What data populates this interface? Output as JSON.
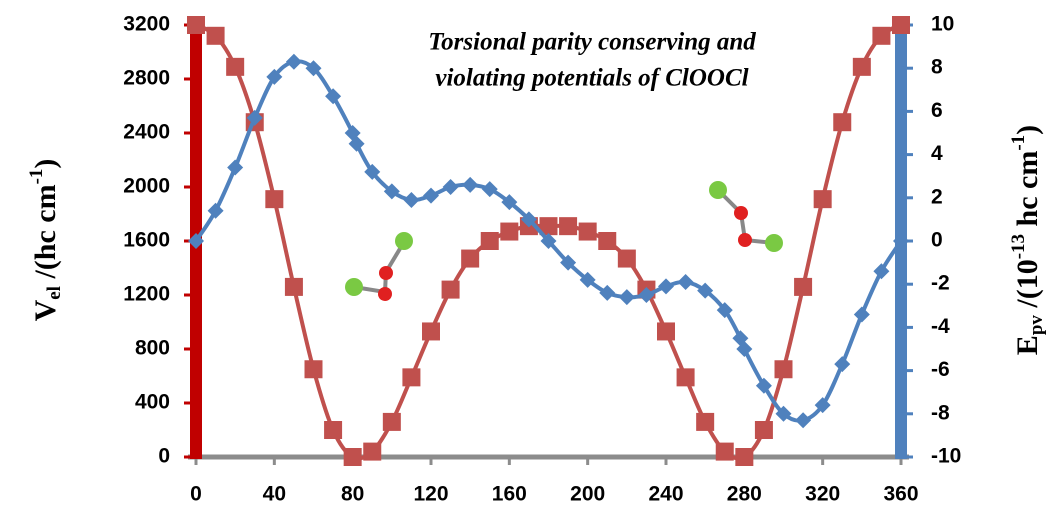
{
  "chart_data": {
    "type": "line",
    "title_lines": [
      "Torsional parity conserving and",
      "violating potentials of ClOOCl"
    ],
    "y_label_parts": [
      "V",
      "el",
      " /(hc cm",
      "-1",
      ")"
    ],
    "y2_label_parts": [
      "E",
      "pv",
      " /(10",
      "-13",
      " hc cm",
      "-1",
      ")"
    ],
    "xlim": [
      0,
      360
    ],
    "xticks": [
      0,
      40,
      80,
      120,
      160,
      200,
      240,
      280,
      320,
      360
    ],
    "ylim": [
      0,
      3200
    ],
    "yticks": [
      0,
      400,
      800,
      1200,
      1600,
      2000,
      2400,
      2800,
      3200
    ],
    "y2lim": [
      -10,
      10
    ],
    "y2ticks": [
      -10,
      -8,
      -6,
      -4,
      -2,
      0,
      2,
      4,
      6,
      8,
      10
    ],
    "series": [
      {
        "color": "#c0504d",
        "axis": "y",
        "marker": "square",
        "x": [
          0,
          10,
          20,
          30,
          40,
          50,
          60,
          70,
          80,
          90,
          100,
          110,
          120,
          130,
          140,
          150,
          160,
          170,
          180,
          190,
          200,
          210,
          220,
          230,
          240,
          250,
          260,
          270,
          280,
          290,
          300,
          310,
          320,
          330,
          340,
          350,
          360
        ],
        "values": [
          3200,
          3120,
          2890,
          2480,
          1910,
          1260,
          650,
          200,
          0,
          40,
          260,
          590,
          930,
          1240,
          1470,
          1600,
          1670,
          1710,
          1710,
          1710,
          1670,
          1600,
          1470,
          1240,
          930,
          590,
          260,
          40,
          0,
          200,
          650,
          1260,
          1910,
          2480,
          2890,
          3120,
          3200
        ]
      },
      {
        "color": "#4f81bd",
        "axis": "y2",
        "marker": "diamond",
        "x": [
          0,
          10,
          20,
          30,
          40,
          50,
          60,
          70,
          80,
          82,
          90,
          100,
          110,
          120,
          130,
          140,
          150,
          160,
          170,
          180,
          190,
          200,
          210,
          220,
          230,
          240,
          250,
          260,
          270,
          278,
          280,
          290,
          300,
          310,
          320,
          330,
          340,
          350,
          360
        ],
        "values": [
          0,
          1.4,
          3.4,
          5.7,
          7.6,
          8.3,
          8.0,
          6.7,
          5.0,
          4.5,
          3.2,
          2.3,
          1.9,
          2.1,
          2.5,
          2.6,
          2.4,
          1.8,
          1.0,
          0,
          -1.0,
          -1.8,
          -2.4,
          -2.6,
          -2.5,
          -2.1,
          -1.9,
          -2.3,
          -3.2,
          -4.5,
          -5.0,
          -6.7,
          -8.0,
          -8.3,
          -7.6,
          -5.7,
          -3.4,
          -1.4,
          0
        ]
      }
    ]
  }
}
